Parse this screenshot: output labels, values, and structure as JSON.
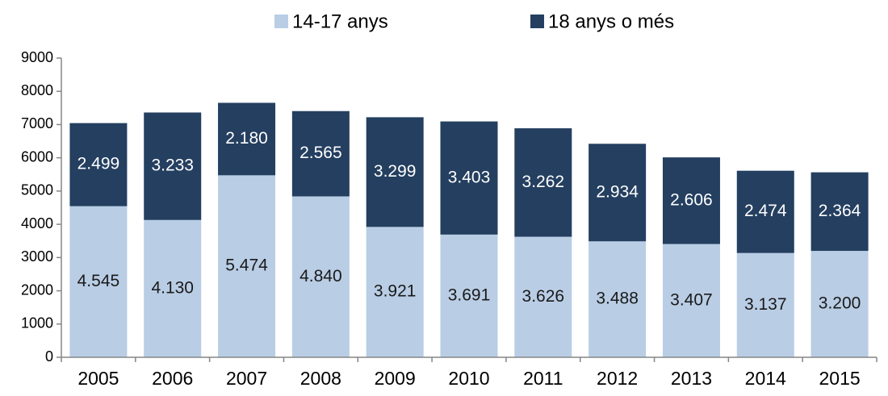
{
  "chart_data": {
    "type": "stacked_bar",
    "categories": [
      "2005",
      "2006",
      "2007",
      "2008",
      "2009",
      "2010",
      "2011",
      "2012",
      "2013",
      "2014",
      "2015"
    ],
    "series": [
      {
        "name": "14-17 anys",
        "color": "#b9cde5",
        "label_color": "#1a1a1a",
        "values": [
          4545,
          4130,
          5474,
          4840,
          3921,
          3691,
          3626,
          3488,
          3407,
          3137,
          3200
        ],
        "value_labels": [
          "4.545",
          "4.130",
          "5.474",
          "4.840",
          "3.921",
          "3.691",
          "3.626",
          "3.488",
          "3.407",
          "3.137",
          "3.200"
        ]
      },
      {
        "name": "18 anys o més",
        "color": "#243f60",
        "label_color": "#ffffff",
        "values": [
          2499,
          3233,
          2180,
          2565,
          3299,
          3403,
          3262,
          2934,
          2606,
          2474,
          2364
        ],
        "value_labels": [
          "2.499",
          "3.233",
          "2.180",
          "2.565",
          "3.299",
          "3.403",
          "3.262",
          "2.934",
          "2.606",
          "2.474",
          "2.364"
        ]
      }
    ],
    "ylim": [
      0,
      9000
    ],
    "yticks": [
      0,
      1000,
      2000,
      3000,
      4000,
      5000,
      6000,
      7000,
      8000,
      9000
    ],
    "legend": "top"
  }
}
